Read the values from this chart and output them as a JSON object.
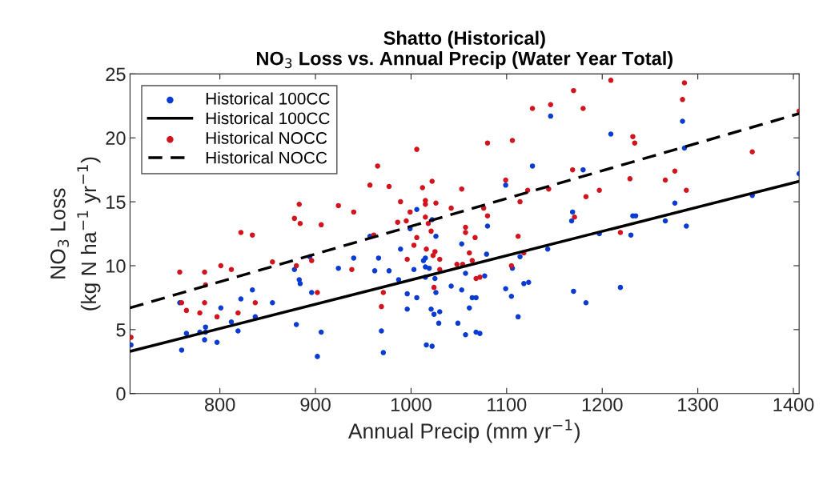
{
  "chart_data": {
    "type": "scatter",
    "title": "Shatto (Historical)\nNO$_{3}$ Loss vs. Annual Precip (Water Year Total)",
    "xlabel": "Annual Precip (mm yr$^{−1}$)",
    "ylabel": "NO$_{3}$ Loss\n(kg N ha$^{−1}$ yr$^{−1}$)",
    "xlim": [
      706,
      1406
    ],
    "xticks": [
      800,
      900,
      1000,
      1100,
      1200,
      1300,
      1400
    ],
    "ylim": [
      0,
      25
    ],
    "yticks": [
      0,
      5,
      10,
      15,
      20,
      25
    ],
    "grid": false,
    "legend": "top left",
    "series": [
      {
        "name": "Historical 100CC",
        "marker": "circle",
        "color": "#0a3cd2",
        "x": [
          707,
          758,
          760,
          765,
          779,
          785,
          785,
          784,
          797,
          801,
          812,
          819,
          822,
          834,
          837,
          855,
          878,
          880,
          883,
          884,
          894,
          896,
          902,
          906,
          924,
          940,
          957,
          962,
          966,
          969,
          971,
          977,
          987,
          989,
          996,
          996,
          999,
          1003,
          1006,
          1006,
          1013,
          1015,
          1015,
          1015,
          1016,
          1019,
          1021,
          1022,
          1022,
          1024,
          1025,
          1026,
          1026,
          1029,
          1030,
          1042,
          1049,
          1053,
          1053,
          1057,
          1057,
          1061,
          1064,
          1068,
          1068,
          1072,
          1077,
          1079,
          1080,
          1099,
          1099,
          1105,
          1106,
          1112,
          1114,
          1118,
          1123,
          1127,
          1143,
          1146,
          1168,
          1169,
          1170,
          1180,
          1183,
          1197,
          1209,
          1219,
          1230,
          1232,
          1235,
          1266,
          1276,
          1284,
          1286,
          1288,
          1357,
          1406
        ],
        "values": [
          3.8,
          7.1,
          3.4,
          4.7,
          4.8,
          5.2,
          4.8,
          4.2,
          4.0,
          6.7,
          5.6,
          4.9,
          7.4,
          8.1,
          6.0,
          7.1,
          9.7,
          5.4,
          8.9,
          8.6,
          10.7,
          7.9,
          2.9,
          4.8,
          9.8,
          10.6,
          12.3,
          9.6,
          10.6,
          4.9,
          3.2,
          9.6,
          8.9,
          11.3,
          7.8,
          6.6,
          12.9,
          9.7,
          14.4,
          7.5,
          10.4,
          10.6,
          9.9,
          9.1,
          3.8,
          9.8,
          6.6,
          13.6,
          3.7,
          6.2,
          9.0,
          12.3,
          7.9,
          5.5,
          6.4,
          8.4,
          5.5,
          8.1,
          11.7,
          9.4,
          4.6,
          6.7,
          7.5,
          7.5,
          4.8,
          4.7,
          9.2,
          10.9,
          13.1,
          16.3,
          8.2,
          7.6,
          9.8,
          6.0,
          10.7,
          8.6,
          8.7,
          17.8,
          11.3,
          21.7,
          13.5,
          14.2,
          8.0,
          17.5,
          7.1,
          12.5,
          20.3,
          8.3,
          12.4,
          13.9,
          13.9,
          13.5,
          14.9,
          21.3,
          19.2,
          13.1,
          15.5,
          17.2
        ]
      },
      {
        "name": "Historical 100CC",
        "type": "line",
        "line_style": "solid",
        "marker": "none",
        "color": "#000000",
        "x": [
          706,
          1406
        ],
        "values": [
          3.3,
          16.6
        ]
      },
      {
        "name": "Historical NOCC",
        "marker": "circle",
        "color": "#d2141e",
        "x": [
          707,
          758,
          760,
          765,
          779,
          784,
          785,
          784,
          797,
          801,
          812,
          819,
          822,
          834,
          837,
          855,
          878,
          880,
          883,
          884,
          896,
          902,
          906,
          924,
          938,
          940,
          957,
          961,
          965,
          969,
          971,
          977,
          986,
          989,
          995,
          996,
          999,
          1003,
          1006,
          1006,
          1012,
          1015,
          1015,
          1015,
          1016,
          1018,
          1021,
          1022,
          1023,
          1024,
          1025,
          1026,
          1030,
          1030,
          1042,
          1048,
          1053,
          1054,
          1057,
          1057,
          1061,
          1064,
          1067,
          1068,
          1072,
          1076,
          1080,
          1080,
          1099,
          1105,
          1106,
          1112,
          1114,
          1118,
          1122,
          1127,
          1144,
          1146,
          1169,
          1170,
          1171,
          1180,
          1183,
          1197,
          1209,
          1219,
          1229,
          1232,
          1234,
          1266,
          1276,
          1284,
          1286,
          1288,
          1357,
          1406
        ],
        "values": [
          4.4,
          9.5,
          7.1,
          6.5,
          6.3,
          9.5,
          8.5,
          7.1,
          6.0,
          10.0,
          9.7,
          6.3,
          12.6,
          12.4,
          7.1,
          10.3,
          13.7,
          10.0,
          14.8,
          13.3,
          10.4,
          7.9,
          13.2,
          14.7,
          9.7,
          14.2,
          16.3,
          12.4,
          17.8,
          6.8,
          7.9,
          16.2,
          13.4,
          15.0,
          13.5,
          10.5,
          14.2,
          11.6,
          19.1,
          12.2,
          16.1,
          13.8,
          15.1,
          14.8,
          11.3,
          13.3,
          12.7,
          16.6,
          10.8,
          8.3,
          11.1,
          14.9,
          10.5,
          9.7,
          14.5,
          10.1,
          16.0,
          10.1,
          13.0,
          12.6,
          11.0,
          10.4,
          12.2,
          9.0,
          9.1,
          14.5,
          19.6,
          13.9,
          16.7,
          10.0,
          19.8,
          12.3,
          15.0,
          11.0,
          15.9,
          22.3,
          16.0,
          22.6,
          17.5,
          23.7,
          13.8,
          22.3,
          15.4,
          15.9,
          24.5,
          12.6,
          16.8,
          20.1,
          19.6,
          16.7,
          17.4,
          23.0,
          24.3,
          15.9,
          18.9,
          22.1
        ]
      },
      {
        "name": "Historical NOCC",
        "type": "line",
        "line_style": "dashed",
        "marker": "none",
        "color": "#000000",
        "x": [
          706,
          1406
        ],
        "values": [
          6.7,
          21.9
        ]
      }
    ]
  }
}
